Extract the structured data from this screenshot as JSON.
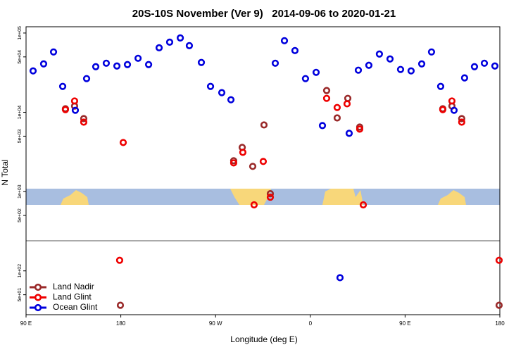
{
  "chart_data": {
    "type": "scatter",
    "title": "20S-10S November (Ver 9)   2014-09-06 to 2020-01-21",
    "x_label": "Longitude (deg E)",
    "y_label": "N Total",
    "log_y": true,
    "legend": "bottom-left",
    "xlim": [
      90,
      540
    ],
    "xticks": [
      {
        "value": 90,
        "label": "90 E"
      },
      {
        "value": 180,
        "label": "180"
      },
      {
        "value": 270,
        "label": "90 W"
      },
      {
        "value": 360,
        "label": "0"
      },
      {
        "value": 450,
        "label": "90 E"
      },
      {
        "value": 540,
        "label": "180"
      }
    ],
    "ylim": [
      28,
      120000
    ],
    "yticks": [
      {
        "value": 100000,
        "label": "1e+05"
      },
      {
        "value": 50000,
        "label": "5e+04"
      },
      {
        "value": 10000,
        "label": "1e+04"
      },
      {
        "value": 5000,
        "label": "5e+03"
      },
      {
        "value": 1000,
        "label": "1e+03"
      },
      {
        "value": 500,
        "label": "5e+02"
      },
      {
        "value": 100,
        "label": "1e+02"
      },
      {
        "value": 50,
        "label": "5e+01"
      }
    ],
    "series": [
      {
        "name": "Land Nadir",
        "color": "#9a2a2a",
        "x": [
          127.4,
          136.1,
          144.8,
          287.2,
          295.3,
          305.3,
          316.0,
          322.0,
          375.5,
          385.5,
          395.6,
          406.9,
          485.8,
          494.5,
          503.8,
          179.6,
          539.3
        ],
        "values": [
          11100,
          12000,
          8320,
          2450,
          3610,
          2080,
          6930,
          940,
          18800,
          8490,
          15000,
          6520,
          11100,
          12000,
          8320,
          36.8,
          36.8
        ]
      },
      {
        "name": "Land Glint",
        "color": "#ee0000",
        "x": [
          127.4,
          136.1,
          144.8,
          182.3,
          287.2,
          295.9,
          306.6,
          315.3,
          322.0,
          375.5,
          385.5,
          394.9,
          406.9,
          410.3,
          485.8,
          494.5,
          503.8,
          178.9,
          539.3
        ],
        "values": [
          10800,
          13900,
          7520,
          4160,
          2300,
          3130,
          680,
          2400,
          850,
          15000,
          11500,
          12800,
          6140,
          680,
          10800,
          13900,
          7520,
          136,
          136
        ]
      },
      {
        "name": "Ocean Glint",
        "color": "#0000dd",
        "x": [
          96.7,
          106.7,
          116.1,
          124.8,
          136.8,
          147.5,
          156.2,
          166.2,
          176.3,
          186.3,
          196.4,
          206.4,
          216.4,
          226.4,
          236.5,
          245.1,
          256.5,
          265.2,
          275.9,
          284.6,
          326.7,
          335.4,
          345.4,
          355.4,
          365.5,
          371.5,
          396.9,
          405.6,
          415.6,
          425.6,
          435.7,
          445.7,
          455.7,
          465.8,
          475.1,
          483.8,
          496.5,
          506.5,
          515.9,
          525.3,
          535.3,
          388.2
        ],
        "values": [
          33300,
          40800,
          57700,
          21200,
          10600,
          26600,
          37600,
          41600,
          38400,
          40000,
          48000,
          40000,
          65200,
          76700,
          86700,
          69300,
          42500,
          21200,
          17700,
          14400,
          41600,
          80000,
          60100,
          26600,
          31900,
          6800,
          5430,
          34000,
          39200,
          54300,
          47100,
          34700,
          33300,
          40800,
          57700,
          21200,
          10600,
          27200,
          37600,
          41600,
          38400,
          82
        ]
      }
    ]
  }
}
